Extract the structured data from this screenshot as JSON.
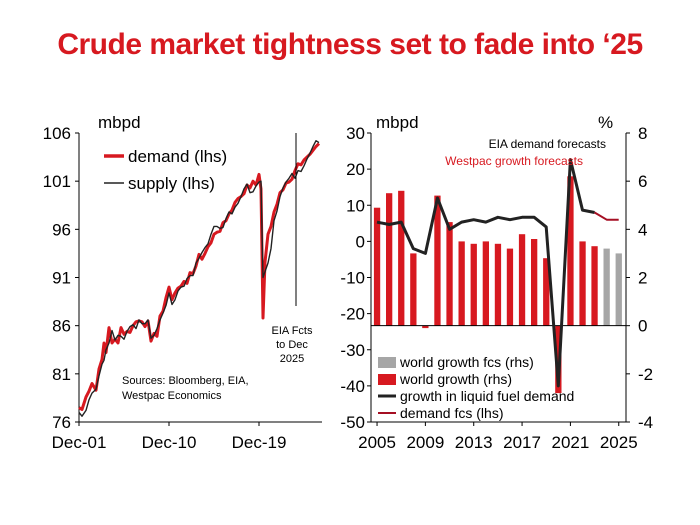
{
  "title": "Crude market tightness set to fade into ‘25",
  "colors": {
    "title": "#d71920",
    "red": "#d71920",
    "darkred": "#a50f23",
    "grey": "#a6a6a6",
    "line": "#222222"
  },
  "chart_data": [
    {
      "type": "line",
      "ylabel": "mbpd",
      "ylim": [
        76,
        106
      ],
      "yticks": [
        "106",
        "101",
        "96",
        "91",
        "86",
        "81",
        "76"
      ],
      "xlim": [
        2001.9,
        2026.2
      ],
      "xticks": [
        {
          "x": 2001.9,
          "label": "Dec-01"
        },
        {
          "x": 2010.9,
          "label": "Dec-10"
        },
        {
          "x": 2019.9,
          "label": "Dec-19"
        }
      ],
      "legend": [
        "demand (lhs)",
        "supply (lhs)"
      ],
      "annotation_lines": [
        "EIA Fcts",
        "to Dec",
        "2025"
      ],
      "forecast_start": 2023.6,
      "source_lines": [
        "Sources: Bloomberg, EIA,",
        "Westpac Economics"
      ],
      "series": [
        {
          "name": "demand (lhs)",
          "x": [
            2001.9,
            2002.2,
            2002.6,
            2002.9,
            2003.2,
            2003.6,
            2003.9,
            2004.2,
            2004.4,
            2004.6,
            2004.9,
            2005.2,
            2005.5,
            2005.8,
            2006.1,
            2006.4,
            2006.7,
            2007.0,
            2007.3,
            2007.6,
            2007.9,
            2008.2,
            2008.5,
            2008.8,
            2009.1,
            2009.4,
            2009.7,
            2010.0,
            2010.3,
            2010.6,
            2010.9,
            2011.2,
            2011.5,
            2011.8,
            2012.1,
            2012.4,
            2012.7,
            2013.0,
            2013.3,
            2013.6,
            2013.9,
            2014.2,
            2014.5,
            2014.8,
            2015.1,
            2015.4,
            2015.7,
            2016.0,
            2016.3,
            2016.6,
            2016.9,
            2017.2,
            2017.5,
            2017.8,
            2018.1,
            2018.4,
            2018.7,
            2019.0,
            2019.3,
            2019.6,
            2019.9,
            2020.1,
            2020.3,
            2020.5,
            2020.8,
            2021.1,
            2021.4,
            2021.7,
            2022.0,
            2022.3,
            2022.6,
            2022.9,
            2023.2,
            2023.5,
            2023.8,
            2024.1,
            2024.4,
            2024.7,
            2025.0,
            2025.3,
            2025.6,
            2025.9
          ],
          "values": [
            77.5,
            77.3,
            78.6,
            79.2,
            80.0,
            79.3,
            81.5,
            82.5,
            84.2,
            83.2,
            85.8,
            84.2,
            84.6,
            84.2,
            85.8,
            85.1,
            85.4,
            85.3,
            86.0,
            86.4,
            86.5,
            86.4,
            85.9,
            86.5,
            84.4,
            85.2,
            84.9,
            87.0,
            87.5,
            88.9,
            90.0,
            88.7,
            89.4,
            89.9,
            90.1,
            90.6,
            90.4,
            91.5,
            91.4,
            92.2,
            93.4,
            92.9,
            93.5,
            94.2,
            94.6,
            95.5,
            95.7,
            95.8,
            96.7,
            96.9,
            97.6,
            98.0,
            98.8,
            99.2,
            99.4,
            99.7,
            100.6,
            100.3,
            101.0,
            100.6,
            101.7,
            100.2,
            86.8,
            92.6,
            95.5,
            96.3,
            97.8,
            98.6,
            99.8,
            100.1,
            100.8,
            100.9,
            101.2,
            102.1,
            102.8,
            102.7,
            103.2,
            103.5,
            103.8,
            104.2,
            104.6,
            104.9
          ]
        },
        {
          "name": "supply (lhs)",
          "x": [
            2001.9,
            2002.2,
            2002.6,
            2002.9,
            2003.2,
            2003.6,
            2003.9,
            2004.2,
            2004.4,
            2004.6,
            2004.9,
            2005.2,
            2005.5,
            2005.8,
            2006.1,
            2006.4,
            2006.7,
            2007.0,
            2007.3,
            2007.6,
            2007.9,
            2008.2,
            2008.5,
            2008.8,
            2009.1,
            2009.4,
            2009.7,
            2010.0,
            2010.3,
            2010.6,
            2010.9,
            2011.2,
            2011.5,
            2011.8,
            2012.1,
            2012.4,
            2012.7,
            2013.0,
            2013.3,
            2013.6,
            2013.9,
            2014.2,
            2014.5,
            2014.8,
            2015.1,
            2015.4,
            2015.7,
            2016.0,
            2016.3,
            2016.6,
            2016.9,
            2017.2,
            2017.5,
            2017.8,
            2018.1,
            2018.4,
            2018.7,
            2019.0,
            2019.3,
            2019.6,
            2019.9,
            2020.1,
            2020.3,
            2020.5,
            2020.8,
            2021.1,
            2021.4,
            2021.7,
            2022.0,
            2022.3,
            2022.6,
            2022.9,
            2023.2,
            2023.5,
            2023.8,
            2024.1,
            2024.4,
            2024.7,
            2025.0,
            2025.3,
            2025.6,
            2025.9
          ],
          "values": [
            77.0,
            76.6,
            77.2,
            78.3,
            79.0,
            79.4,
            80.8,
            82.0,
            82.4,
            83.5,
            84.2,
            85.5,
            84.5,
            85.0,
            84.9,
            84.6,
            85.4,
            85.9,
            86.1,
            85.7,
            86.6,
            86.2,
            86.2,
            86.6,
            84.7,
            85.0,
            85.7,
            86.6,
            87.3,
            88.1,
            89.4,
            88.2,
            88.7,
            89.6,
            90.0,
            90.1,
            90.9,
            91.2,
            91.2,
            92.5,
            93.0,
            93.6,
            94.1,
            94.5,
            95.5,
            96.3,
            96.3,
            96.1,
            96.2,
            97.1,
            97.8,
            97.6,
            98.3,
            98.7,
            99.4,
            100.2,
            100.7,
            99.8,
            99.9,
            100.5,
            100.9,
            101.0,
            91.0,
            91.6,
            92.5,
            94.0,
            96.9,
            97.9,
            99.4,
            100.3,
            100.9,
            101.3,
            101.8,
            101.3,
            102.1,
            102.0,
            102.6,
            103.3,
            103.9,
            104.6,
            105.2,
            105.0
          ]
        }
      ]
    },
    {
      "type": "bar",
      "ylabel": "mbpd",
      "ylabel_right": "%",
      "ylim": [
        -50,
        30
      ],
      "ylim_right": [
        -4,
        8
      ],
      "yticks": [
        "30",
        "20",
        "10",
        "0",
        "-10",
        "-20",
        "-30",
        "-40",
        "-50"
      ],
      "yticks_right": [
        "8",
        "6",
        "4",
        "2",
        "0",
        "-2",
        "-4"
      ],
      "xticks": [
        "2005",
        "2009",
        "2013",
        "2017",
        "2021",
        "2025"
      ],
      "annotations": [
        "EIA demand forecasts",
        "Westpac growth forecasts"
      ],
      "legend": [
        "world growth fcs (rhs)",
        "world growth (rhs)",
        "growth in liquid fuel demand",
        "demand fcs (lhs)"
      ],
      "years": [
        2005,
        2006,
        2007,
        2008,
        2009,
        2010,
        2011,
        2012,
        2013,
        2014,
        2015,
        2016,
        2017,
        2018,
        2019,
        2020,
        2021,
        2022,
        2023,
        2024,
        2025
      ],
      "world_growth_rhs": [
        4.9,
        5.5,
        5.6,
        3.0,
        -0.1,
        5.4,
        4.3,
        3.5,
        3.4,
        3.5,
        3.4,
        3.2,
        3.8,
        3.6,
        2.8,
        -2.8,
        6.2,
        3.5,
        3.3,
        null,
        null
      ],
      "world_growth_fcs_rhs": [
        null,
        null,
        null,
        null,
        null,
        null,
        null,
        null,
        null,
        null,
        null,
        null,
        null,
        null,
        null,
        null,
        null,
        null,
        null,
        3.2,
        3.0
      ],
      "liquid_fuel_growth_rhs": [
        4.3,
        4.2,
        4.3,
        3.2,
        3.0,
        5.3,
        4.0,
        4.3,
        4.4,
        4.3,
        4.5,
        4.4,
        4.5,
        4.5,
        4.1,
        -2.5,
        6.9,
        4.8,
        4.7,
        null,
        null
      ],
      "demand_fcs_rhs": [
        null,
        null,
        null,
        null,
        null,
        null,
        null,
        null,
        null,
        null,
        null,
        null,
        null,
        null,
        null,
        null,
        null,
        null,
        4.7,
        4.4,
        4.4
      ]
    }
  ]
}
